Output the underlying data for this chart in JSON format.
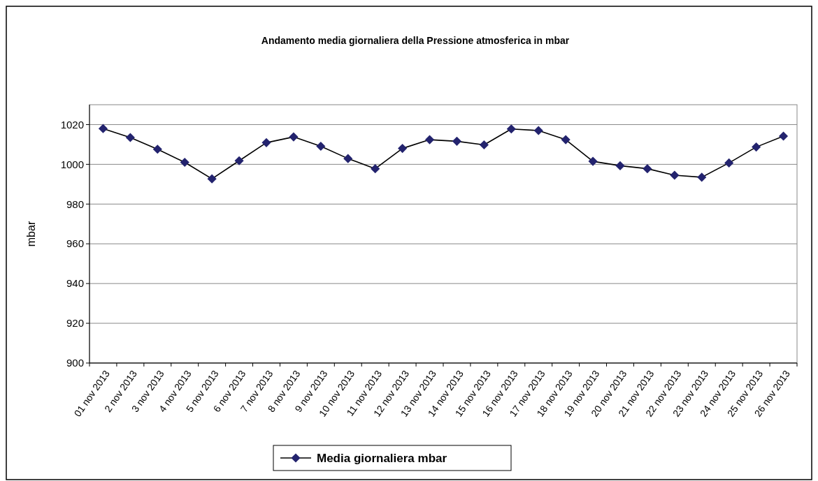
{
  "chart_data": {
    "type": "line",
    "title": "Andamento media giornaliera della Pressione atmosferica in mbar",
    "ylabel": "mbar",
    "categories": [
      "01 nov 2013",
      "2 nov 2013",
      "3 nov 2013",
      "4 nov 2013",
      "5 nov 2013",
      "6 nov 2013",
      "7 nov 2013",
      "8 nov 2013",
      "9 nov 2013",
      "10 nov 2013",
      "11 nov 2013",
      "12 nov 2013",
      "13 nov 2013",
      "14 nov 2013",
      "15 nov 2013",
      "16 nov 2013",
      "17 nov 2013",
      "18 nov 2013",
      "19 nov 2013",
      "20 nov 2013",
      "21 nov 2013",
      "22 nov 2013",
      "23 nov 2013",
      "24 nov 2013",
      "25 nov 2013",
      "26 nov 2013"
    ],
    "series": [
      {
        "name": "Media giornaliera mbar",
        "color": "#23236e",
        "values": [
          1018,
          1013.5,
          1007.6,
          1001,
          992.7,
          1001.8,
          1010.9,
          1013.8,
          1009.1,
          1002.9,
          997.8,
          1008,
          1012.4,
          1011.6,
          1009.8,
          1017.8,
          1017,
          1012.4,
          1001.5,
          999.3,
          997.8,
          994.5,
          993.5,
          1000.7,
          1008.7,
          1014.2
        ]
      }
    ],
    "ylim": [
      900,
      1030
    ],
    "yticks": [
      900,
      920,
      940,
      960,
      980,
      1000,
      1020
    ],
    "grid": "y",
    "legend": "bottom",
    "marker": "diamond",
    "line_style": "solid"
  }
}
